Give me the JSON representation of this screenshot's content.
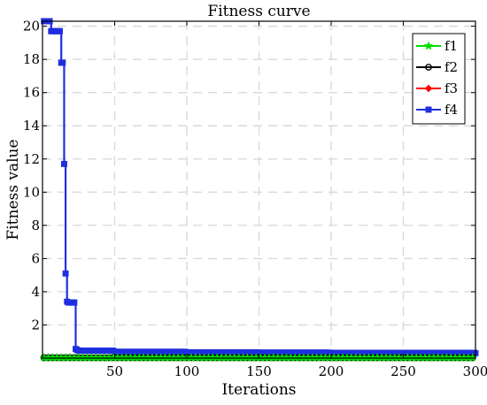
{
  "chart_data": {
    "type": "line",
    "title": "Fitness curve",
    "xlabel": "Iterations",
    "ylabel": "Fitness value",
    "xlim": [
      0,
      300
    ],
    "ylim": [
      0,
      20.3
    ],
    "xticks": [
      50,
      100,
      150,
      200,
      250,
      300
    ],
    "yticks": [
      2,
      4,
      6,
      8,
      10,
      12,
      14,
      16,
      18,
      20
    ],
    "grid": true,
    "legend_position": "top-right",
    "series": [
      {
        "name": "f1",
        "color": "#00e000",
        "marker": "star",
        "x": [
          1,
          300
        ],
        "y": [
          0.02,
          0.02
        ]
      },
      {
        "name": "f2",
        "color": "#000000",
        "marker": "circle",
        "x": [
          1,
          300
        ],
        "y": [
          0.03,
          0.03
        ]
      },
      {
        "name": "f3",
        "color": "#ff0000",
        "marker": "diamond",
        "x": [
          1,
          300
        ],
        "y": [
          0.04,
          0.04
        ]
      },
      {
        "name": "f4",
        "color": "#1f2fe0",
        "marker": "square",
        "x": [
          1,
          5,
          6,
          12,
          13,
          15,
          16,
          17,
          18,
          19,
          20,
          22,
          23,
          24,
          25,
          30,
          40,
          50,
          100,
          150,
          200,
          300
        ],
        "y": [
          20.3,
          20.3,
          19.7,
          19.7,
          17.8,
          11.7,
          5.1,
          3.4,
          3.35,
          3.35,
          3.35,
          3.35,
          0.55,
          0.5,
          0.45,
          0.45,
          0.45,
          0.38,
          0.35,
          0.33,
          0.32,
          0.3
        ]
      }
    ]
  }
}
